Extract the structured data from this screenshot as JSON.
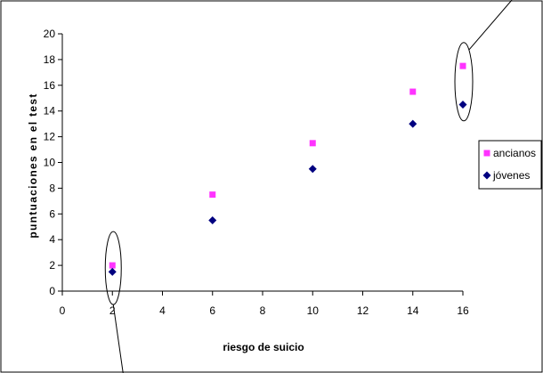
{
  "chart_data": {
    "type": "scatter",
    "title": "",
    "xlabel": "riesgo de suicio",
    "ylabel": "puntuaciones en el test",
    "xlim": [
      0,
      16
    ],
    "ylim": [
      0,
      20
    ],
    "x_ticks": [
      0,
      2,
      4,
      6,
      8,
      10,
      12,
      14,
      16
    ],
    "y_ticks": [
      0,
      2,
      4,
      6,
      8,
      10,
      12,
      14,
      16,
      18,
      20
    ],
    "grid": false,
    "legend_position": "right",
    "series": [
      {
        "name": "ancianos",
        "marker": "square",
        "color": "#ff33ff",
        "points": [
          {
            "x": 2,
            "y": 2
          },
          {
            "x": 6,
            "y": 7.5
          },
          {
            "x": 10,
            "y": 11.5
          },
          {
            "x": 14,
            "y": 15.5
          },
          {
            "x": 16,
            "y": 17.5
          }
        ]
      },
      {
        "name": "jóvenes",
        "marker": "diamond",
        "color": "#000080",
        "points": [
          {
            "x": 2,
            "y": 1.5
          },
          {
            "x": 6,
            "y": 5.5
          },
          {
            "x": 10,
            "y": 9.5
          },
          {
            "x": 14,
            "y": 13
          },
          {
            "x": 16,
            "y": 14.5
          }
        ]
      }
    ],
    "annotations": [
      {
        "type": "ellipse",
        "around_x": 2
      },
      {
        "type": "ellipse",
        "around_x": 16
      }
    ]
  }
}
